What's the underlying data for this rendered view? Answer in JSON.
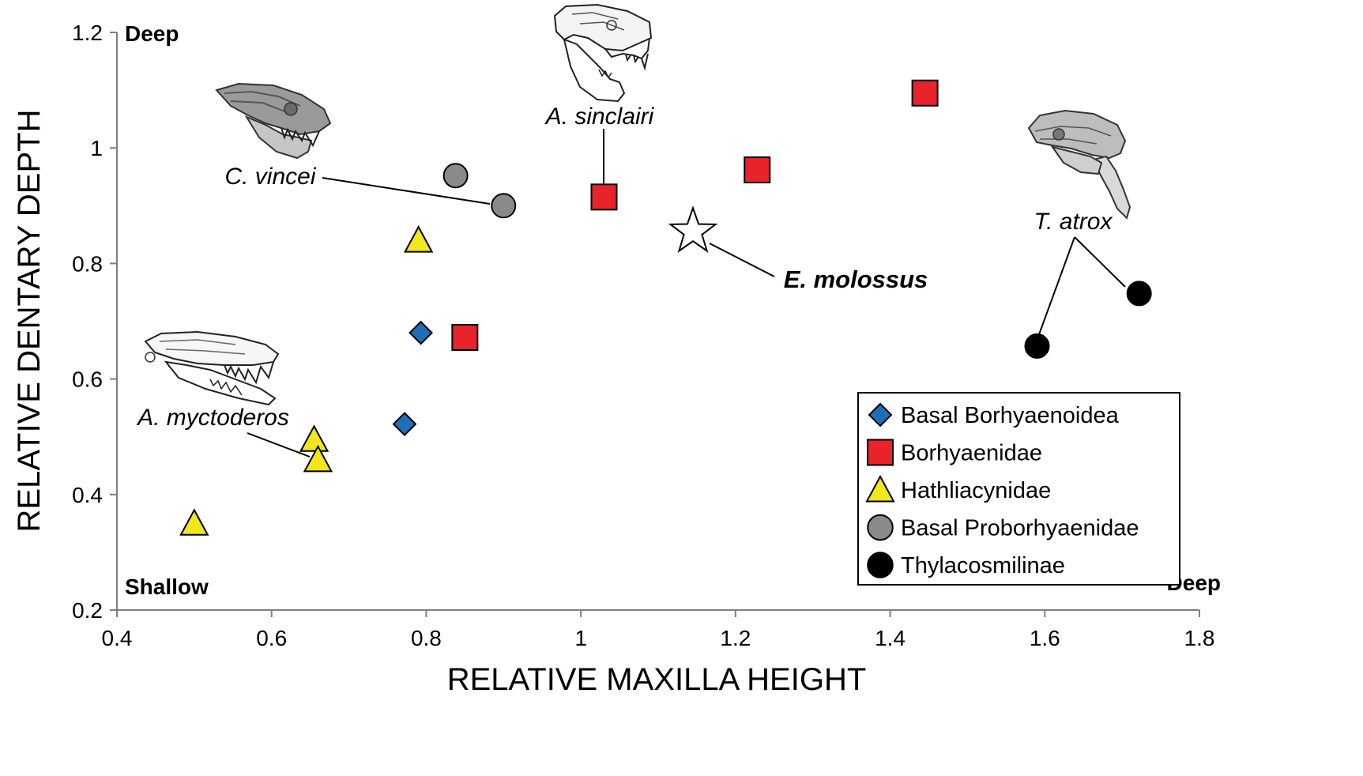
{
  "chart_data": {
    "type": "scatter",
    "title": "",
    "xlabel": "RELATIVE MAXILLA HEIGHT",
    "ylabel": "RELATIVE DENTARY DEPTH",
    "xlim": [
      0.4,
      1.8
    ],
    "ylim": [
      0.2,
      1.2
    ],
    "xticks": [
      "0.4",
      "0.6",
      "0.8",
      "1",
      "1.2",
      "1.4",
      "1.6",
      "1.8"
    ],
    "yticks": [
      "0.2",
      "0.4",
      "0.6",
      "0.8",
      "1",
      "1.2"
    ],
    "grid": false,
    "legend_position": "bottom-right",
    "corner_labels": {
      "top_left": "Deep",
      "bottom_left": "Shallow",
      "bottom_right": "Deep"
    },
    "series": [
      {
        "name": "Basal Borhyaenoidea",
        "marker": "diamond",
        "color": "#1f6fb8",
        "points": [
          [
            0.793,
            0.68
          ],
          [
            0.772,
            0.522
          ]
        ]
      },
      {
        "name": "Borhyaenidae",
        "marker": "square",
        "color": "#e8232a",
        "points": [
          [
            0.85,
            0.672
          ],
          [
            1.03,
            0.915
          ],
          [
            1.228,
            0.962
          ],
          [
            1.445,
            1.095
          ]
        ]
      },
      {
        "name": "Hathliacynidae",
        "marker": "triangle",
        "color": "#f2e61c",
        "points": [
          [
            0.79,
            0.84
          ],
          [
            0.655,
            0.495
          ],
          [
            0.66,
            0.46
          ],
          [
            0.5,
            0.35
          ]
        ]
      },
      {
        "name": "Basal Proborhyaenidae",
        "marker": "circle",
        "color": "#8a8a8a",
        "points": [
          [
            0.838,
            0.952
          ],
          [
            0.9,
            0.9
          ]
        ]
      },
      {
        "name": "Thylacosmilinae",
        "marker": "circle",
        "color": "#000000",
        "points": [
          [
            1.59,
            0.657
          ],
          [
            1.722,
            0.748
          ]
        ]
      },
      {
        "name": "E. molossus",
        "marker": "star",
        "color": "#ffffff",
        "in_legend": false,
        "points": [
          [
            1.145,
            0.855
          ]
        ]
      }
    ],
    "annotations": [
      {
        "text": "A. sinclairi",
        "style": "italic"
      },
      {
        "text": "C. vincei",
        "style": "italic"
      },
      {
        "text": "E. molossus",
        "style": "bold-italic"
      },
      {
        "text": "T. atrox",
        "style": "italic"
      },
      {
        "text": "A. myctoderos",
        "style": "italic"
      }
    ],
    "skull_illustrations": [
      {
        "icon": "skull-illustration-icon",
        "taxon": "A. sinclairi"
      },
      {
        "icon": "skull-illustration-icon",
        "taxon": "C. vincei"
      },
      {
        "icon": "skull-illustration-icon",
        "taxon": "T. atrox"
      },
      {
        "icon": "skull-illustration-icon",
        "taxon": "A. myctoderos"
      }
    ]
  }
}
